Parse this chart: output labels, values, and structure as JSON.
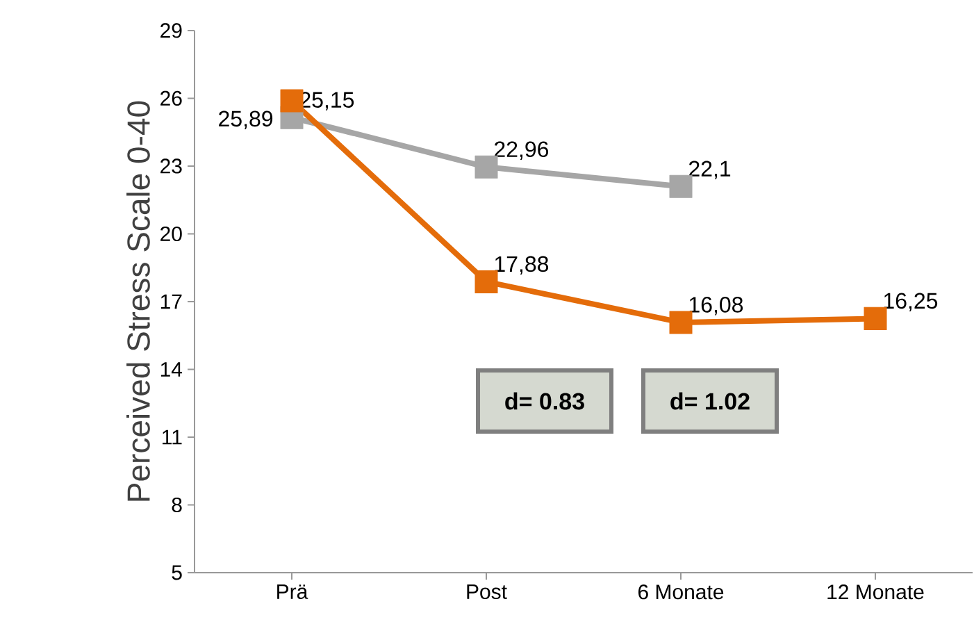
{
  "chart_data": {
    "type": "line",
    "ylabel": "Perceived Stress Scale 0-40",
    "categories": [
      "Prä",
      "Post",
      "6 Monate",
      "12 Monate"
    ],
    "series": [
      {
        "color": "#a6a6a6",
        "values": [
          25.15,
          22.96,
          22.1,
          null
        ],
        "value_labels": [
          "25,15",
          "22,96",
          "22,1",
          null
        ]
      },
      {
        "color": "#e46c0a",
        "values": [
          25.89,
          17.88,
          16.08,
          16.25
        ],
        "value_labels": [
          "25,89",
          "17,88",
          "16,08",
          "16,25"
        ]
      }
    ],
    "ylim": [
      5,
      29
    ],
    "yticks": [
      5,
      8,
      11,
      14,
      17,
      20,
      23,
      26,
      29
    ],
    "marker": "square",
    "line_style": "solid",
    "grid": false,
    "annotations": [
      "d= 0.83",
      "d= 1.02"
    ]
  }
}
